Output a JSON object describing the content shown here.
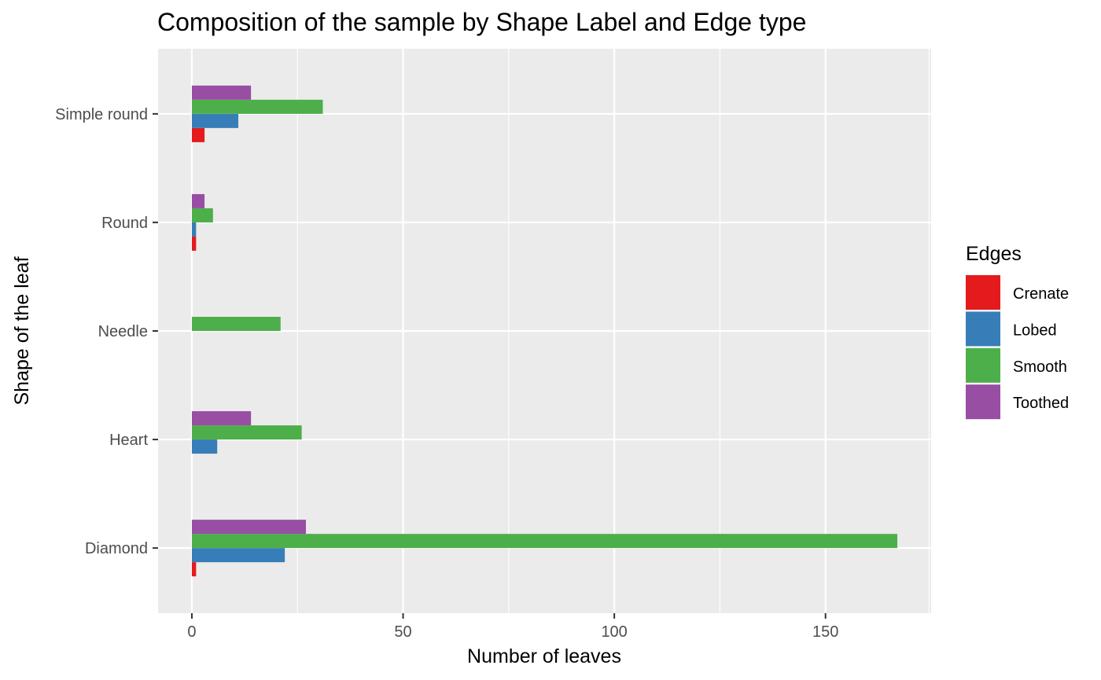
{
  "chart_data": {
    "type": "bar",
    "orientation": "horizontal",
    "title": "Composition of the sample by Shape Label and Edge type",
    "xlabel": "Number of leaves",
    "ylabel": "Shape of the leaf",
    "xlim": [
      -8,
      175
    ],
    "xticks": [
      0,
      50,
      100,
      150
    ],
    "categories": [
      "Diamond",
      "Heart",
      "Needle",
      "Round",
      "Simple round"
    ],
    "series": [
      {
        "name": "Crenate",
        "color": "#e41a1c",
        "values": [
          1,
          0,
          0,
          1,
          3
        ]
      },
      {
        "name": "Lobed",
        "color": "#377eb8",
        "values": [
          22,
          6,
          0,
          1,
          11
        ]
      },
      {
        "name": "Smooth",
        "color": "#4daf4a",
        "values": [
          167,
          26,
          21,
          5,
          31
        ]
      },
      {
        "name": "Toothed",
        "color": "#984ea3",
        "values": [
          27,
          14,
          0,
          3,
          14
        ]
      }
    ],
    "legend": {
      "title": "Edges",
      "position": "right"
    },
    "grid": true
  }
}
